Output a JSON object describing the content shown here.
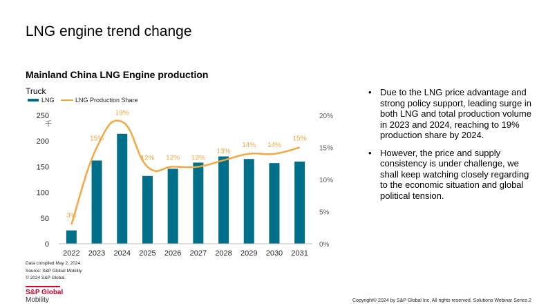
{
  "slide": {
    "title": "LNG engine trend change",
    "page_number": "2",
    "copyright": "Copyright© 2024 by S&P Global Inc. All rights reserved. Solutions Webinar Series."
  },
  "notes": {
    "compiled": "Data compiled May 2, 2024.",
    "source": "Source: S&P Global Mobility",
    "copyright": "© 2024 S&P Global."
  },
  "logo": {
    "brand": "S&P Global",
    "sub": "Mobility"
  },
  "bullets": [
    "Due to the LNG price advantage and strong policy support, leading surge in both LNG and total production volume in 2023 and 2024, reaching to 19% production share by 2024.",
    "However, the price and supply consistency is under challenge, we shall keep watching closely regarding to the economic situation and global political tension."
  ],
  "chart_data": {
    "type": "bar",
    "title": "Mainland China LNG Engine production",
    "subtitle": "Truck",
    "ylabel": "千",
    "categories": [
      "2022",
      "2023",
      "2024",
      "2025",
      "2026",
      "2027",
      "2028",
      "2029",
      "2030",
      "2031"
    ],
    "ylim": [
      0,
      250
    ],
    "yticks": [
      "0",
      "50",
      "100",
      "150",
      "200",
      "250"
    ],
    "y2lim": [
      0,
      20
    ],
    "y2ticks": [
      "0%",
      "5%",
      "10%",
      "15%",
      "20%"
    ],
    "legend_position": "top-left",
    "grid": false,
    "series": [
      {
        "name": "LNG",
        "type": "bar",
        "color": "#00708a",
        "values": [
          26,
          162,
          214,
          132,
          146,
          158,
          170,
          165,
          157,
          160
        ]
      },
      {
        "name": "LNG Production Share",
        "type": "line",
        "color": "#f5a742",
        "smooth": true,
        "axis": "secondary",
        "values": [
          3,
          15,
          19,
          12,
          12,
          12,
          13,
          14,
          14,
          15
        ],
        "labels": [
          "3%",
          "15%",
          "19%",
          "12%",
          "12%",
          "12%",
          "13%",
          "14%",
          "14%",
          "15%"
        ]
      }
    ]
  }
}
